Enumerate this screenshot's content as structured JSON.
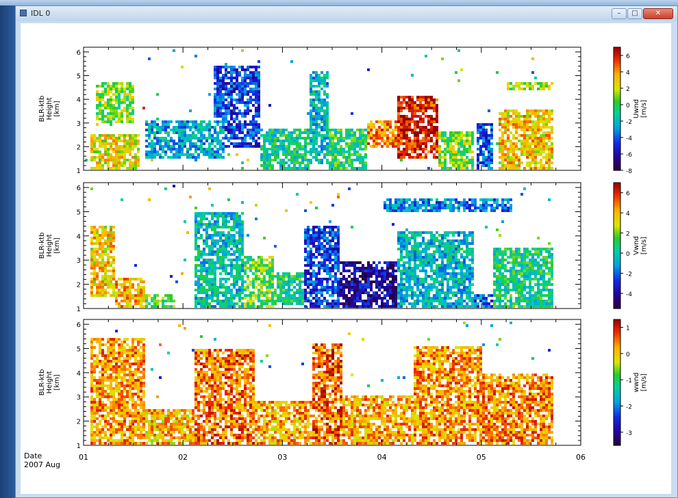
{
  "window": {
    "title": "IDL 0",
    "buttons": {
      "minimize": "–",
      "maximize": "□",
      "close": "✕"
    }
  },
  "chart_data": [
    {
      "type": "heatmap",
      "panel": "u",
      "ylabel_lines": [
        "BLR-ktb",
        "Height",
        "[km]"
      ],
      "yticks": [
        1,
        2,
        3,
        4,
        5,
        6
      ],
      "ylim": [
        1,
        6.2
      ],
      "xlim": [
        1,
        6
      ],
      "colorbar": {
        "label_lines": [
          "Uwnd",
          "[m/s]"
        ],
        "ticks": [
          6,
          4,
          2,
          0,
          -2,
          -4,
          -6,
          -8
        ],
        "range": [
          -8,
          7
        ]
      },
      "top_blobs": [
        [
          1.05,
          1.55,
          1.0,
          2.6,
          2.5
        ],
        [
          1.1,
          1.5,
          3.0,
          4.8,
          1.0
        ],
        [
          1.6,
          2.4,
          1.5,
          3.2,
          -2.5
        ],
        [
          2.3,
          2.75,
          2.0,
          5.5,
          -4.5
        ],
        [
          2.75,
          3.25,
          1.0,
          2.8,
          -1.0
        ],
        [
          3.25,
          3.45,
          1.3,
          5.2,
          -2.0
        ],
        [
          3.45,
          3.85,
          1.0,
          2.8,
          -0.5
        ],
        [
          3.85,
          4.15,
          2.0,
          3.2,
          4.0
        ],
        [
          4.15,
          4.55,
          1.5,
          4.2,
          6.0
        ],
        [
          4.55,
          4.9,
          1.0,
          2.7,
          1.0
        ],
        [
          4.95,
          5.1,
          1.0,
          3.0,
          -4.0
        ],
        [
          5.15,
          5.7,
          1.0,
          3.6,
          3.0
        ],
        [
          5.25,
          5.7,
          4.4,
          4.8,
          1.5
        ]
      ]
    },
    {
      "type": "heatmap",
      "panel": "v",
      "ylabel_lines": [
        "BLR-ktb",
        "Height",
        "[km]"
      ],
      "yticks": [
        1,
        2,
        3,
        4,
        5,
        6
      ],
      "ylim": [
        1,
        6.2
      ],
      "xlim": [
        1,
        6
      ],
      "colorbar": {
        "label_lines": [
          "Vwnd",
          "[m/s]"
        ],
        "ticks": [
          6,
          4,
          2,
          0,
          -2,
          -4
        ],
        "range": [
          -5.5,
          7
        ]
      },
      "top_blobs": [
        [
          1.05,
          1.3,
          1.5,
          4.5,
          3.5
        ],
        [
          1.3,
          1.6,
          1.0,
          2.3,
          4.0
        ],
        [
          1.6,
          1.9,
          1.0,
          1.6,
          1.5
        ],
        [
          2.1,
          2.6,
          1.0,
          5.0,
          -0.2
        ],
        [
          2.6,
          2.9,
          1.0,
          3.2,
          1.5
        ],
        [
          2.9,
          3.2,
          1.2,
          2.6,
          0.5
        ],
        [
          3.2,
          3.55,
          1.0,
          4.5,
          -2.5
        ],
        [
          3.55,
          4.15,
          1.0,
          3.0,
          -4.0
        ],
        [
          4.15,
          4.9,
          1.0,
          4.2,
          -0.5
        ],
        [
          4.9,
          5.1,
          1.0,
          1.6,
          -2.0
        ],
        [
          5.1,
          5.7,
          1.0,
          3.6,
          0.5
        ],
        [
          4.0,
          5.3,
          5.0,
          5.6,
          -1.5
        ]
      ]
    },
    {
      "type": "heatmap",
      "panel": "w",
      "ylabel_lines": [
        "BLR-ktb",
        "Height",
        "[km]"
      ],
      "yticks": [
        1,
        2,
        3,
        4,
        5,
        6
      ],
      "ylim": [
        1,
        6.2
      ],
      "xlim": [
        1,
        6
      ],
      "colorbar": {
        "label_lines": [
          "wwnd",
          "[m/s]"
        ],
        "ticks": [
          1,
          0,
          -1,
          -2,
          -3
        ],
        "range": [
          -3.5,
          1.3
        ]
      },
      "top_blobs": [
        [
          1.05,
          1.6,
          1.0,
          5.5,
          0.3
        ],
        [
          1.6,
          2.1,
          1.0,
          2.5,
          0.1
        ],
        [
          2.1,
          2.7,
          1.0,
          5.0,
          0.5
        ],
        [
          2.7,
          3.3,
          1.0,
          2.9,
          0.2
        ],
        [
          3.3,
          3.6,
          1.0,
          5.3,
          0.6
        ],
        [
          3.6,
          4.3,
          1.0,
          3.1,
          0.2
        ],
        [
          4.3,
          5.0,
          1.0,
          5.2,
          0.3
        ],
        [
          5.0,
          5.7,
          1.0,
          4.0,
          0.4
        ]
      ]
    }
  ],
  "xaxis": {
    "ticks": [
      1,
      2,
      3,
      4,
      5,
      6
    ],
    "tick_labels": [
      "01",
      "02",
      "03",
      "04",
      "05",
      "06"
    ],
    "label_lines": [
      "Date",
      "2007 Aug"
    ]
  }
}
